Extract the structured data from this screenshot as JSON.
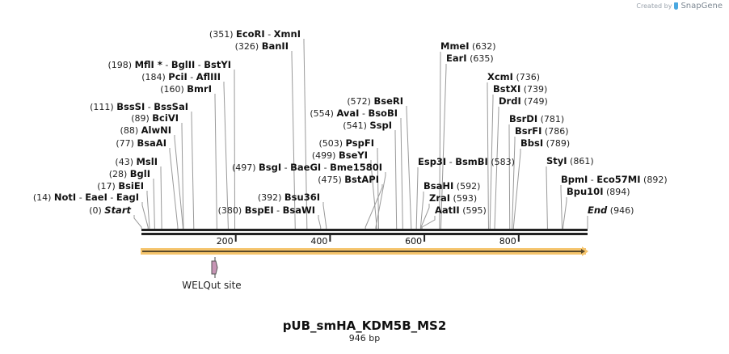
{
  "watermark": {
    "text": "Created by",
    "brand": "SnapGene"
  },
  "map": {
    "title": "pUB_smHA_KDM5B_MS2",
    "length_label": "946 bp",
    "length_bp": 946,
    "ruler_ticks": [
      {
        "label": "200",
        "bp": 200
      },
      {
        "label": "400",
        "bp": 400
      },
      {
        "label": "600",
        "bp": 600
      },
      {
        "label": "800",
        "bp": 800
      }
    ],
    "feature": {
      "label": "WELQut site",
      "color": "#c795b5"
    },
    "orf_color": "#f5c46c",
    "orf_arrow_color": "#5a4a2a"
  },
  "sites_left": [
    {
      "pos": "(351)",
      "names": [
        "EcoRI",
        "XmnI"
      ],
      "bp": 351
    },
    {
      "pos": "(326)",
      "names": [
        "BanII"
      ],
      "bp": 326
    },
    {
      "pos": "(198)",
      "names": [
        "MflI *",
        "BglII",
        "BstYI"
      ],
      "bp": 198
    },
    {
      "pos": "(184)",
      "names": [
        "PciI",
        "AflIII"
      ],
      "bp": 184
    },
    {
      "pos": "(160)",
      "names": [
        "BmrI"
      ],
      "bp": 160
    },
    {
      "pos": "(111)",
      "names": [
        "BssSI",
        "BssSaI"
      ],
      "bp": 111
    },
    {
      "pos": "(89)",
      "names": [
        "BciVI"
      ],
      "bp": 89
    },
    {
      "pos": "(88)",
      "names": [
        "AlwNI"
      ],
      "bp": 88
    },
    {
      "pos": "(77)",
      "names": [
        "BsaAI"
      ],
      "bp": 77
    },
    {
      "pos": "(43)",
      "names": [
        "MslI"
      ],
      "bp": 43
    },
    {
      "pos": "(28)",
      "names": [
        "BglI"
      ],
      "bp": 28
    },
    {
      "pos": "(17)",
      "names": [
        "BsiEI"
      ],
      "bp": 17
    },
    {
      "pos": "(14)",
      "names": [
        "NotI",
        "EaeI",
        "EagI"
      ],
      "bp": 14
    },
    {
      "pos": "(0)",
      "names": [
        "Start"
      ],
      "bp": 0,
      "italic": true
    },
    {
      "pos": "(497)",
      "names": [
        "BsgI",
        "BaeGI",
        "Bme1580I"
      ],
      "bp": 497
    },
    {
      "pos": "(380)",
      "names": [
        "BspEI",
        "BsaWI"
      ],
      "bp": 380
    },
    {
      "pos": "(392)",
      "names": [
        "Bsu36I"
      ],
      "bp": 392
    },
    {
      "pos": "(475)",
      "names": [
        "BstAPI"
      ],
      "bp": 475
    },
    {
      "pos": "(499)",
      "names": [
        "BseYI"
      ],
      "bp": 499
    },
    {
      "pos": "(503)",
      "names": [
        "PspFI"
      ],
      "bp": 503
    },
    {
      "pos": "(541)",
      "names": [
        "SspI"
      ],
      "bp": 541
    },
    {
      "pos": "(554)",
      "names": [
        "AvaI",
        "BsoBI"
      ],
      "bp": 554
    },
    {
      "pos": "(572)",
      "names": [
        "BseRI"
      ],
      "bp": 572
    }
  ],
  "sites_right": [
    {
      "pos": "(632)",
      "names": [
        "MmeI"
      ],
      "bp": 632
    },
    {
      "pos": "(635)",
      "names": [
        "EarI"
      ],
      "bp": 635
    },
    {
      "pos": "(736)",
      "names": [
        "XcmI"
      ],
      "bp": 736
    },
    {
      "pos": "(739)",
      "names": [
        "BstXI"
      ],
      "bp": 739
    },
    {
      "pos": "(749)",
      "names": [
        "DrdI"
      ],
      "bp": 749
    },
    {
      "pos": "(781)",
      "names": [
        "BsrDI"
      ],
      "bp": 781
    },
    {
      "pos": "(786)",
      "names": [
        "BsrFI"
      ],
      "bp": 786
    },
    {
      "pos": "(789)",
      "names": [
        "BbsI"
      ],
      "bp": 789
    },
    {
      "pos": "(583)",
      "names": [
        "Esp3I",
        "BsmBI"
      ],
      "bp": 583
    },
    {
      "pos": "(592)",
      "names": [
        "BsaHI"
      ],
      "bp": 592
    },
    {
      "pos": "(593)",
      "names": [
        "ZraI"
      ],
      "bp": 593
    },
    {
      "pos": "(595)",
      "names": [
        "AatII"
      ],
      "bp": 595
    },
    {
      "pos": "(861)",
      "names": [
        "StyI"
      ],
      "bp": 861
    },
    {
      "pos": "(892)",
      "names": [
        "BpmI",
        "Eco57MI"
      ],
      "bp": 892
    },
    {
      "pos": "(894)",
      "names": [
        "Bpu10I"
      ],
      "bp": 894
    },
    {
      "pos": "(946)",
      "names": [
        "End"
      ],
      "bp": 946,
      "italic": true
    }
  ]
}
